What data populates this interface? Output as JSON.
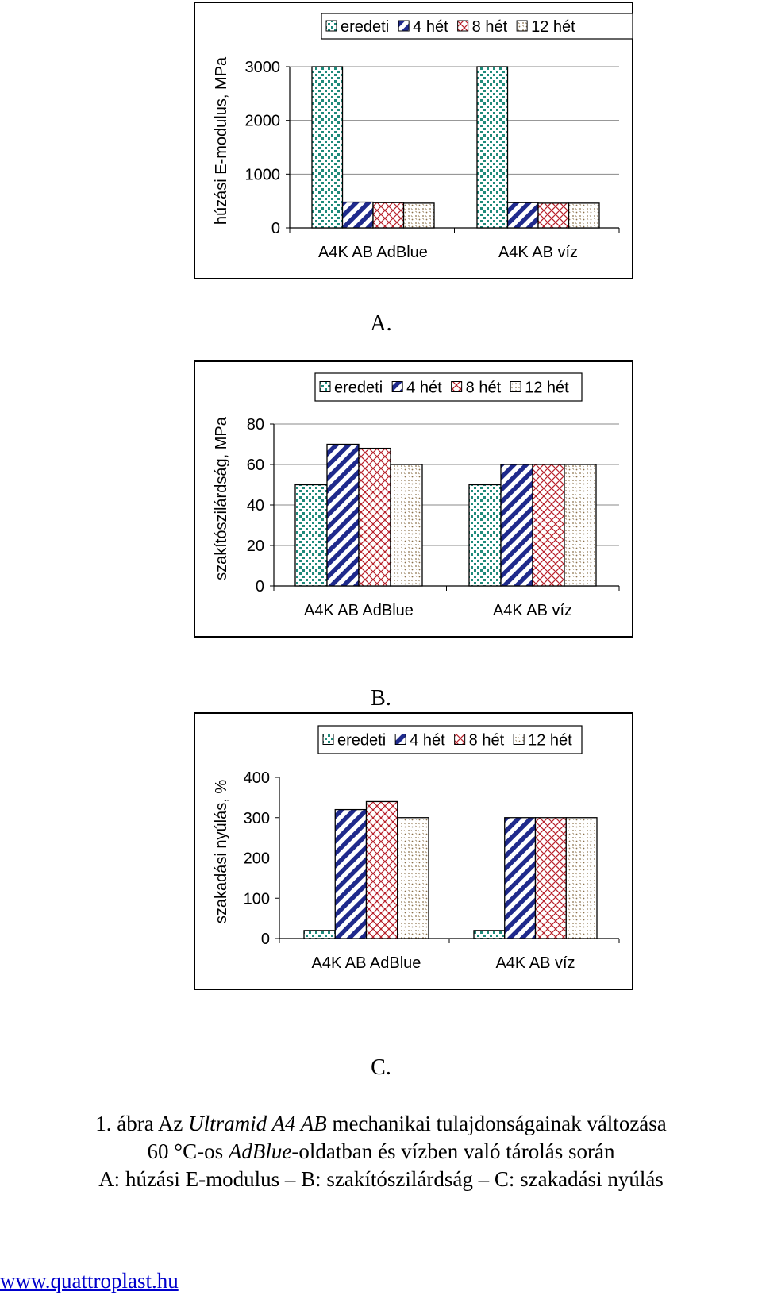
{
  "chart_data": [
    {
      "type": "bar",
      "panel": "A.",
      "ylabel": "húzási E-modulus, MPa",
      "ylim": [
        0,
        3000
      ],
      "yticks": [
        "0",
        "1000",
        "2000",
        "3000"
      ],
      "categories": [
        "A4K AB AdBlue",
        "A4K AB víz"
      ],
      "series": [
        {
          "name": "eredeti",
          "values": [
            3000,
            3000
          ]
        },
        {
          "name": "4 hét",
          "values": [
            480,
            470
          ]
        },
        {
          "name": "8 hét",
          "values": [
            470,
            460
          ]
        },
        {
          "name": "12 hét",
          "values": [
            460,
            460
          ]
        }
      ],
      "legend": "top",
      "grid": true
    },
    {
      "type": "bar",
      "panel": "B.",
      "ylabel": "szakítószilárdság, MPa",
      "ylim": [
        0,
        80
      ],
      "yticks": [
        "0",
        "20",
        "40",
        "60",
        "80"
      ],
      "categories": [
        "A4K AB AdBlue",
        "A4K AB víz"
      ],
      "series": [
        {
          "name": "eredeti",
          "values": [
            50,
            50
          ]
        },
        {
          "name": "4 hét",
          "values": [
            70,
            60
          ]
        },
        {
          "name": "8 hét",
          "values": [
            68,
            60
          ]
        },
        {
          "name": "12 hét",
          "values": [
            60,
            60
          ]
        }
      ],
      "legend": "top",
      "grid": true
    },
    {
      "type": "bar",
      "panel": "C.",
      "ylabel": "szakadási nyúlás, %",
      "ylim": [
        0,
        400
      ],
      "yticks": [
        "0",
        "100",
        "200",
        "300",
        "400"
      ],
      "categories": [
        "A4K AB AdBlue",
        "A4K AB víz"
      ],
      "series": [
        {
          "name": "eredeti",
          "values": [
            20,
            20
          ]
        },
        {
          "name": "4 hét",
          "values": [
            320,
            300
          ]
        },
        {
          "name": "8 hét",
          "values": [
            340,
            300
          ]
        },
        {
          "name": "12 hét",
          "values": [
            300,
            300
          ]
        }
      ],
      "legend": "top",
      "grid": false
    }
  ],
  "series_colors": [
    "#1e8a7a",
    "#1f2a8c",
    "#b8202a",
    "#8a6f48"
  ],
  "panel_captions": [
    "A.",
    "B.",
    "C."
  ],
  "figure_caption": {
    "line1_prefix": "1. ábra Az ",
    "line1_italic": "Ultramid A4 AB",
    "line1_suffix": " mechanikai tulajdonságainak változása",
    "line2_prefix": "60 °C-os ",
    "line2_italic": "AdBlue",
    "line2_suffix": "-oldatban és vízben való tárolás során",
    "line3": "A: húzási E-modulus – B: szakítószilárdság – C: szakadási nyúlás"
  },
  "website": "www.quattroplast.hu"
}
